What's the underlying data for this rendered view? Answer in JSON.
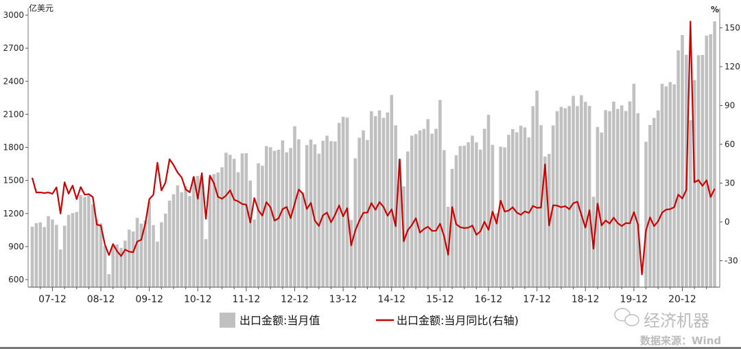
{
  "chart_data": {
    "type": "bar+line",
    "left_unit": "亿美元",
    "right_unit": "%",
    "left_ylim": [
      531,
      3000
    ],
    "left_ticks": [
      600,
      900,
      1200,
      1500,
      1800,
      2100,
      2400,
      2700,
      3000
    ],
    "right_ylim": [
      -50,
      165
    ],
    "right_ticks": [
      -30,
      0,
      30,
      60,
      90,
      120,
      150
    ],
    "x_start": "2007-07",
    "x_end": "2021-08",
    "x_tick_labels": [
      "07-12",
      "08-12",
      "09-12",
      "10-12",
      "11-12",
      "12-12",
      "13-12",
      "14-12",
      "15-12",
      "16-12",
      "17-12",
      "18-12",
      "19-12",
      "20-12"
    ],
    "grid": false,
    "legend_placement": "bottom",
    "colors": {
      "bar": "#c0c0c0",
      "line": "#cc0000"
    },
    "series": [
      {
        "name": "出口金额:当月值",
        "axis": "left",
        "type": "bar",
        "values": [
          1080,
          1113,
          1120,
          1077,
          1176,
          1146,
          1097,
          873,
          1089,
          1188,
          1204,
          1214,
          1367,
          1349,
          1364,
          1283,
          1149,
          1111,
          905,
          649,
          902,
          919,
          888,
          954,
          1054,
          1037,
          1160,
          1108,
          1137,
          1307,
          1095,
          945,
          1121,
          1199,
          1317,
          1374,
          1455,
          1393,
          1449,
          1359,
          1531,
          1541,
          1507,
          967,
          1522,
          1557,
          1572,
          1619,
          1752,
          1733,
          1696,
          1574,
          1745,
          1747,
          1499,
          1145,
          1656,
          1633,
          1812,
          1802,
          1769,
          1779,
          1863,
          1755,
          1794,
          1992,
          1873,
          1393,
          1821,
          1871,
          1827,
          1743,
          1860,
          1906,
          1856,
          1854,
          2022,
          2077,
          2071,
          1141,
          1701,
          1887,
          1955,
          1867,
          2128,
          2084,
          2136,
          2068,
          2117,
          2275,
          2000,
          1694,
          1446,
          1763,
          1907,
          1921,
          1953,
          1968,
          2056,
          1924,
          1968,
          2230,
          1775,
          1261,
          1605,
          1728,
          1812,
          1814,
          1846,
          1906,
          1845,
          1780,
          1968,
          2095,
          1823,
          1201,
          1806,
          1800,
          1914,
          1966,
          1937,
          1996,
          1981,
          1890,
          2174,
          2316,
          2001,
          1717,
          1741,
          1999,
          2128,
          2167,
          2155,
          2175,
          2267,
          2174,
          2273,
          2213,
          2176,
          1352,
          1986,
          1934,
          2138,
          2128,
          2215,
          2149,
          2181,
          2130,
          2217,
          2377,
          2110,
          null,
          1851,
          2003,
          2068,
          2135,
          2377,
          2354,
          2393,
          2371,
          2680,
          2819,
          2640,
          2047,
          2411,
          2636,
          2639,
          2814,
          2827,
          2943
        ]
      },
      {
        "name": "出口金额:当月同比(右轴)",
        "axis": "right",
        "type": "line",
        "values": [
          34.1,
          22.7,
          22.8,
          22.3,
          22.8,
          21.7,
          26.7,
          6.5,
          30.6,
          21.8,
          28.1,
          17.6,
          26.9,
          21.1,
          21.5,
          19.2,
          -2.2,
          -2.8,
          -17.5,
          -25.7,
          -17.1,
          -22.6,
          -26.4,
          -21.4,
          -23.0,
          -23.4,
          -15.2,
          -13.8,
          -1.2,
          17.7,
          21.0,
          45.7,
          24.3,
          30.5,
          48.5,
          43.9,
          38.1,
          34.4,
          25.1,
          22.9,
          34.9,
          17.9,
          37.7,
          2.4,
          35.8,
          29.9,
          19.4,
          17.9,
          20.4,
          24.5,
          17.1,
          15.9,
          13.8,
          13.4,
          -0.5,
          18.4,
          8.9,
          4.9,
          15.3,
          11.3,
          1.0,
          2.7,
          9.9,
          11.6,
          2.9,
          14.1,
          25.0,
          21.8,
          10.0,
          14.7,
          1.0,
          -3.1,
          5.1,
          7.2,
          -0.3,
          5.6,
          12.7,
          4.3,
          10.6,
          -18.1,
          -6.6,
          0.9,
          7.0,
          7.2,
          14.5,
          9.4,
          15.3,
          11.6,
          4.7,
          9.7,
          -3.3,
          48.3,
          -15.0,
          -6.4,
          -2.5,
          2.8,
          -8.3,
          -5.5,
          -3.7,
          -6.9,
          -6.8,
          -1.4,
          -11.2,
          -25.4,
          11.5,
          -1.8,
          -4.1,
          -4.8,
          -4.4,
          -2.8,
          -10.0,
          -7.3,
          0.1,
          -6.1,
          7.9,
          -1.3,
          16.4,
          8.0,
          8.7,
          11.3,
          7.2,
          5.5,
          8.1,
          6.9,
          12.3,
          10.9,
          11.1,
          44.5,
          -2.7,
          12.9,
          12.6,
          11.3,
          12.2,
          9.8,
          14.5,
          15.6,
          5.4,
          -4.4,
          9.1,
          -20.7,
          14.2,
          -2.7,
          1.1,
          -1.3,
          3.3,
          -1.0,
          -3.2,
          -0.9,
          -1.1,
          7.6,
          -2.0,
          -40.6,
          -6.6,
          3.5,
          -3.3,
          0.5,
          7.2,
          9.5,
          9.9,
          11.4,
          21.1,
          18.1,
          24.8,
          154.9,
          30.6,
          32.3,
          27.9,
          32.2,
          19.3,
          25.6
        ]
      }
    ]
  },
  "legend": {
    "bar_label": "出口金额:当月值",
    "line_label": "出口金额:当月同比(右轴)"
  },
  "watermark": {
    "brand": "经济机器",
    "source": "数据来源：Wind"
  }
}
